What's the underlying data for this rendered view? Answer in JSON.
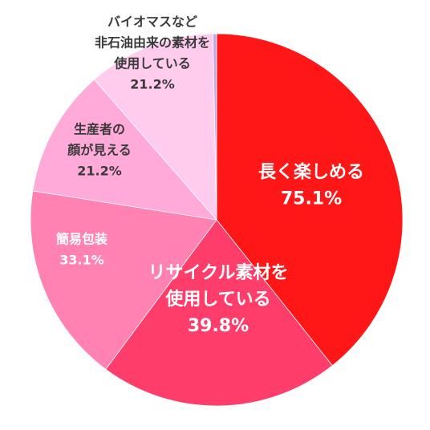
{
  "chart_data": {
    "type": "pie",
    "start_angle_deg": 0,
    "direction": "clockwise",
    "slices": [
      {
        "lines": [
          "長く楽しめる"
        ],
        "value_label": "75.1%",
        "value": 75.1,
        "color": "#FF1616",
        "text_color": "#FFFFFF",
        "size": "large"
      },
      {
        "lines": [
          "リサイクル素材を",
          "使用している"
        ],
        "value_label": "39.8%",
        "value": 39.8,
        "color": "#FF3D6A",
        "text_color": "#FFFFFF",
        "size": "large"
      },
      {
        "lines": [
          "簡易包装"
        ],
        "value_label": "33.1%",
        "value": 33.1,
        "color": "#FF82B3",
        "text_color": "#FFFFFF",
        "size": "small"
      },
      {
        "lines": [
          "生産者の",
          "顔が見える"
        ],
        "value_label": "21.2%",
        "value": 21.2,
        "color": "#FFAAD8",
        "text_color": "#3A3A3A",
        "size": "small"
      },
      {
        "lines": [
          "バイオマスなど",
          "非石油由来の素材を",
          "使用している"
        ],
        "value_label": "21.2%",
        "value": 21.2,
        "color": "#FFCCEE",
        "text_color": "#3A3A3A",
        "size": "small"
      },
      {
        "lines": [],
        "value_label": "",
        "value": 0.6,
        "color": "#C9A6E6",
        "text_color": "#3A3A3A",
        "size": "small"
      }
    ]
  }
}
